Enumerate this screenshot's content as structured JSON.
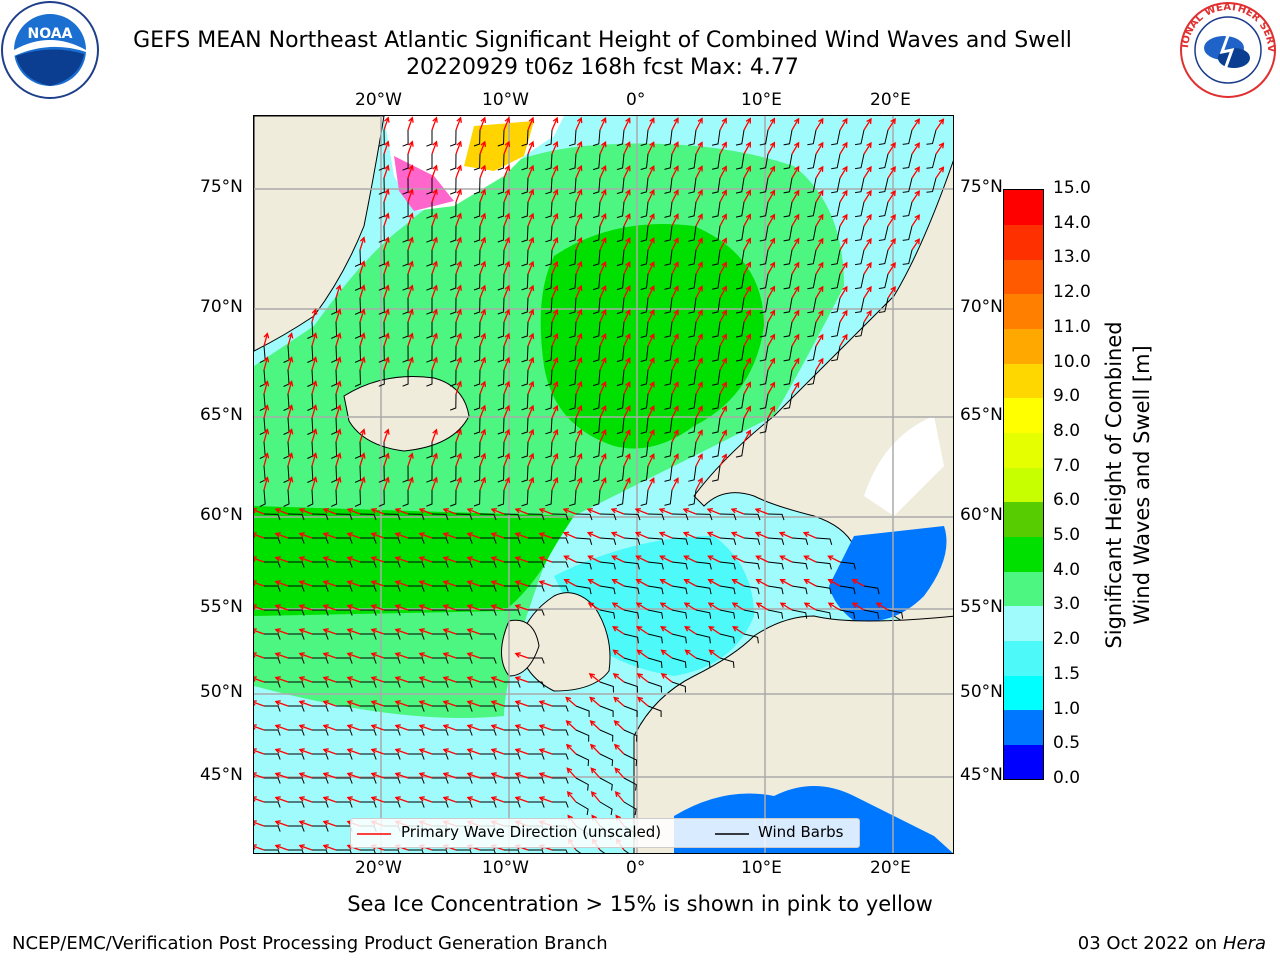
{
  "header": {
    "title_line1": "GEFS MEAN Northeast Atlantic Significant Height of Combined Wind Waves and Swell",
    "title_line2": "20220929 t06z 168h fcst   Max: 4.77"
  },
  "logos": {
    "noaa_text": "NOAA",
    "nws_text": "NATIONAL WEATHER SERVICE"
  },
  "map": {
    "lon_ticks_top": [
      "20°W",
      "10°W",
      "0°",
      "10°E",
      "20°E"
    ],
    "lon_ticks_bottom": [
      "20°W",
      "10°W",
      "0°",
      "10°E",
      "20°E"
    ],
    "lat_ticks_left": [
      "75°N",
      "70°N",
      "65°N",
      "60°N",
      "55°N",
      "50°N",
      "45°N"
    ],
    "lat_ticks_right": [
      "75°N",
      "70°N",
      "65°N",
      "60°N",
      "55°N",
      "50°N",
      "45°N"
    ],
    "legend": {
      "wave_direction": "Primary Wave Direction (unscaled)",
      "wind_barbs": "Wind Barbs"
    },
    "colors": {
      "land": "#efecdc",
      "wave_direction": "#ff0000",
      "wind_barbs": "#000000",
      "grid": "#aaaaaa"
    }
  },
  "colorbar": {
    "label_line1": "Significant Height of Combined",
    "label_line2": "Wind Waves and Swell [m]",
    "ticks": [
      "0.0",
      "0.5",
      "1.0",
      "1.5",
      "2.0",
      "3.0",
      "4.0",
      "5.0",
      "6.0",
      "7.0",
      "8.0",
      "9.0",
      "10.0",
      "11.0",
      "12.0",
      "13.0",
      "14.0",
      "15.0"
    ],
    "colors": [
      "#0000ff",
      "#0077ff",
      "#00ffff",
      "#4df9f9",
      "#a0fcfc",
      "#4cf680",
      "#00e000",
      "#57cc00",
      "#c8ff00",
      "#e5ff00",
      "#ffff00",
      "#ffd700",
      "#ffa800",
      "#ff7f00",
      "#ff5a00",
      "#ff3000",
      "#ff0000"
    ]
  },
  "footer": {
    "ice_note": "Sea Ice Concentration > 15% is shown in pink to yellow",
    "branch": "NCEP/EMC/Verification Post Processing Product Generation Branch",
    "date": "03 Oct 2022 on ",
    "machine": "Hera"
  }
}
